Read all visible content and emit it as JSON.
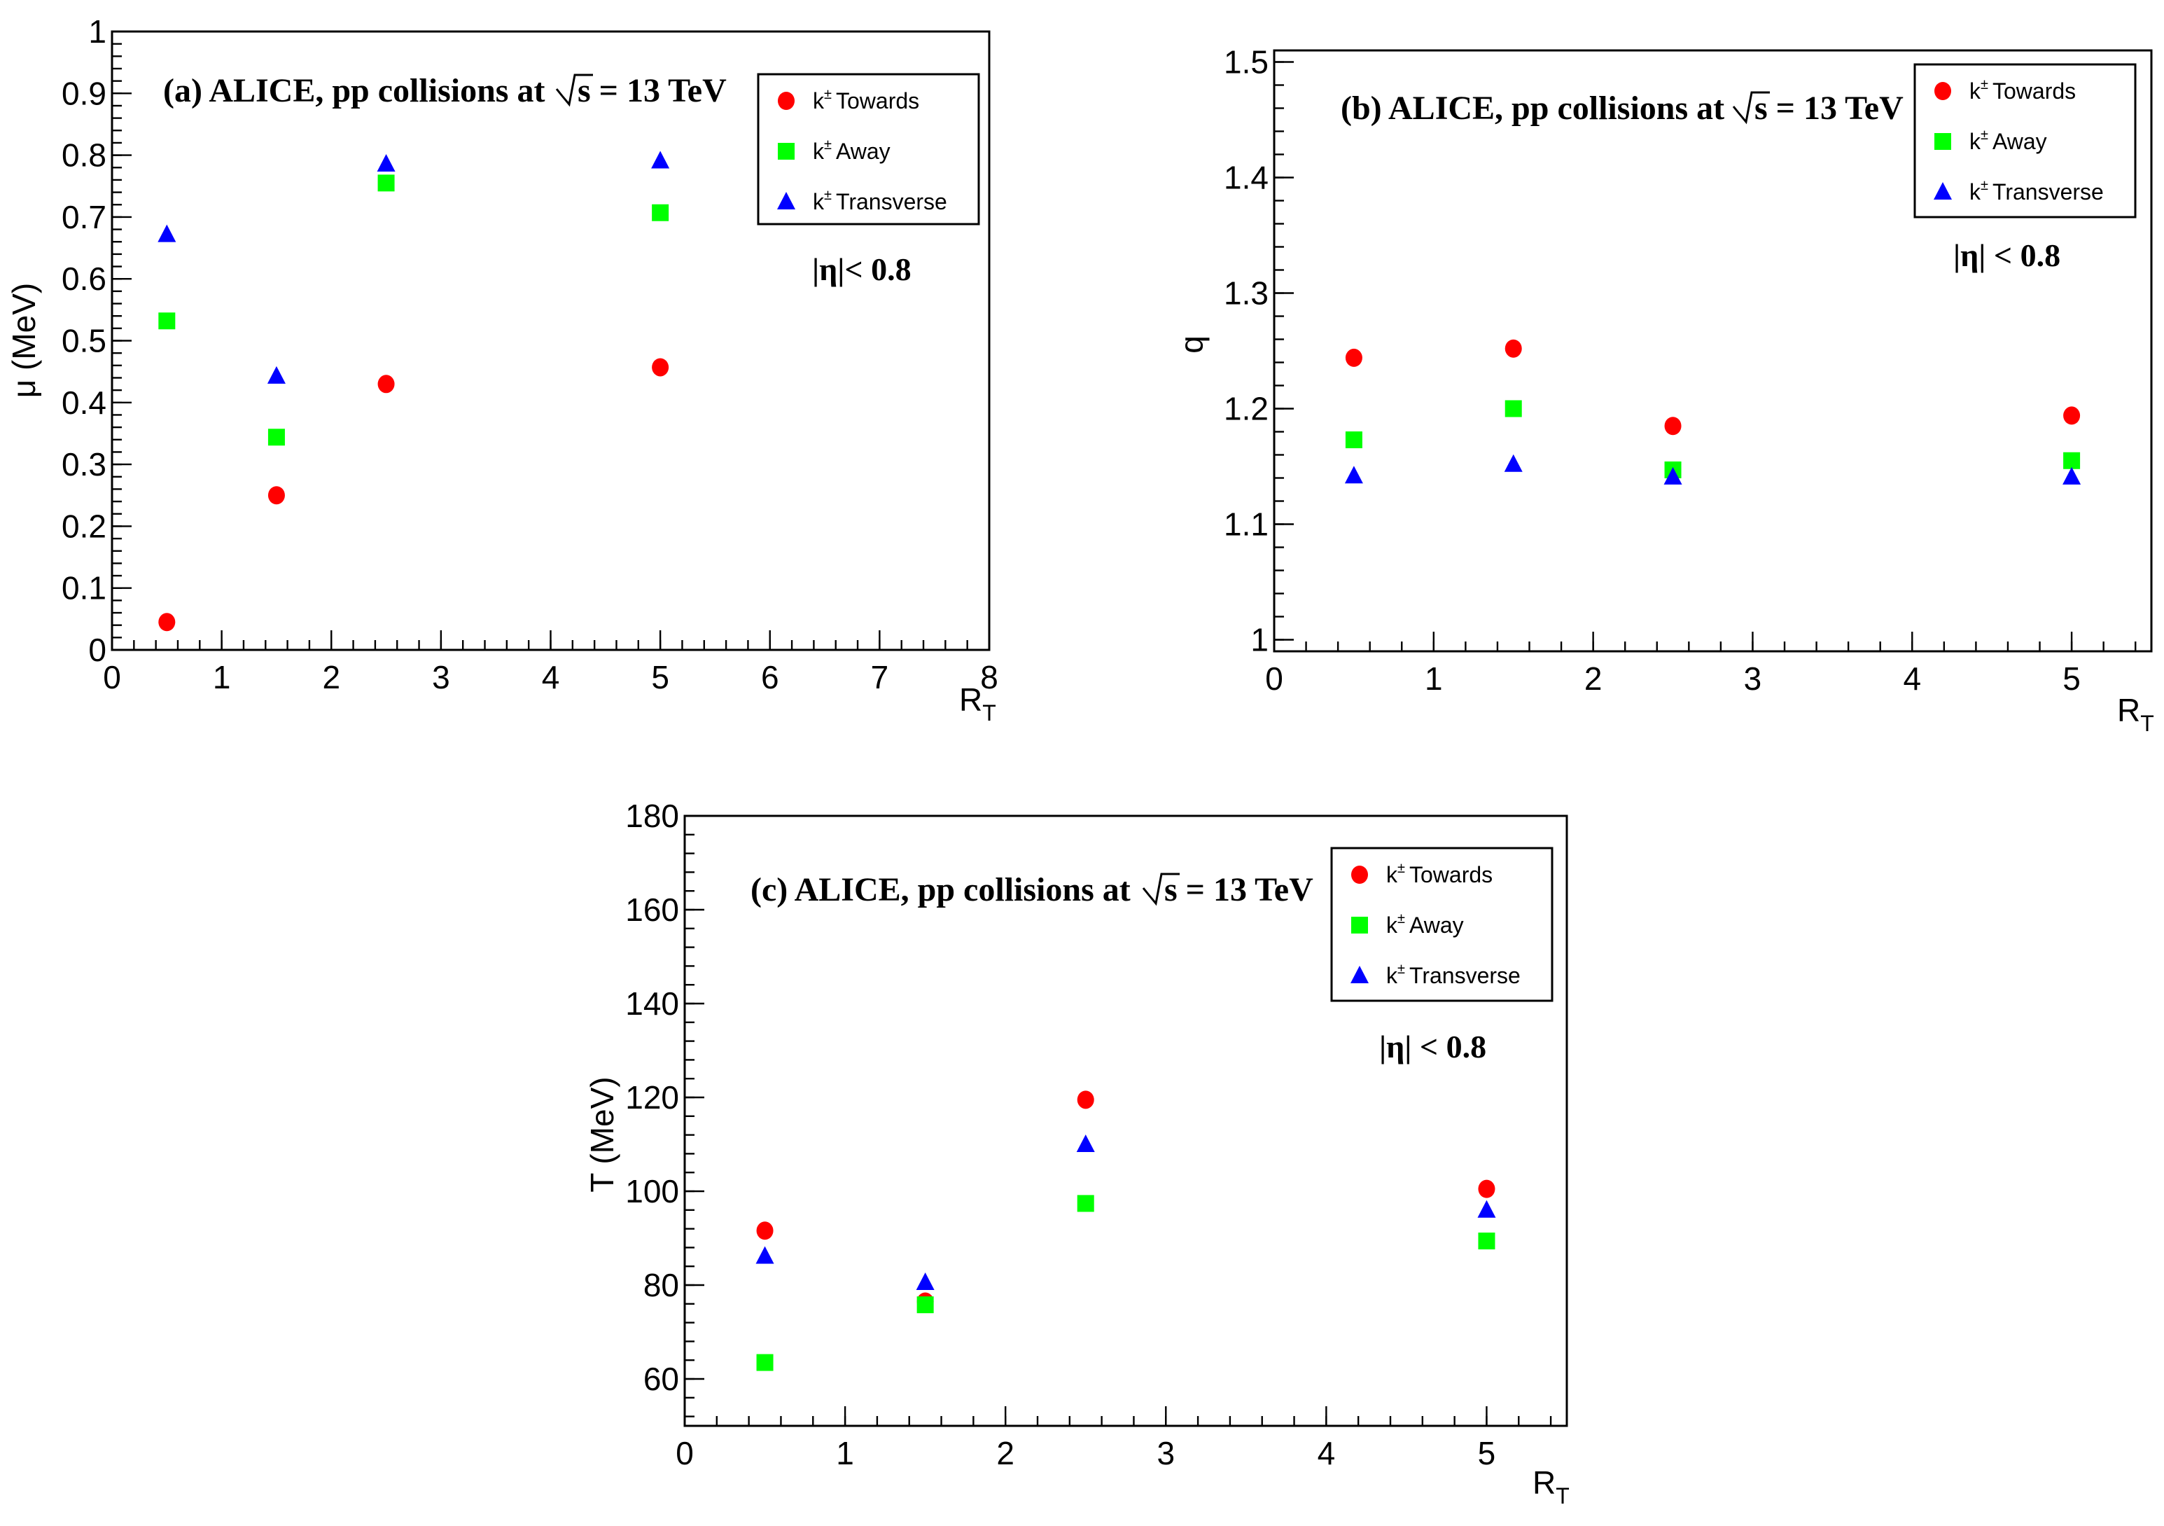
{
  "chart_data": [
    {
      "id": "a",
      "type": "scatter",
      "title": "(a) ALICE, pp collisions at",
      "title_energy": "s = 13 TeV",
      "annotation": "|η|< 0.8",
      "xlabel": "R",
      "xlabel_sub": "T",
      "ylabel": "μ (MeV)",
      "xlim": [
        0,
        8
      ],
      "ylim": [
        0,
        1
      ],
      "xticks": [
        0,
        1,
        2,
        3,
        4,
        5,
        6,
        7,
        8
      ],
      "yticks": [
        0,
        0.1,
        0.2,
        0.3,
        0.4,
        0.5,
        0.6,
        0.7,
        0.8,
        0.9,
        1
      ],
      "xtick_labels": [
        "0",
        "1",
        "2",
        "3",
        "4",
        "5",
        "6",
        "7",
        "8"
      ],
      "ytick_labels": [
        "0",
        "0.1",
        "0.2",
        "0.3",
        "0.4",
        "0.5",
        "0.6",
        "0.7",
        "0.8",
        "0.9",
        "1"
      ],
      "legend_position": "top-right",
      "grid": false,
      "x": [
        0.5,
        1.5,
        2.5,
        5
      ],
      "series": [
        {
          "name": "k± Towards",
          "values": [
            0.045,
            0.25,
            0.43,
            0.457
          ]
        },
        {
          "name": "k± Away",
          "values": [
            0.532,
            0.344,
            0.755,
            0.707
          ]
        },
        {
          "name": "k± Transverse",
          "values": [
            0.672,
            0.443,
            0.786,
            0.791
          ]
        }
      ]
    },
    {
      "id": "b",
      "type": "scatter",
      "title": "(b) ALICE, pp collisions at",
      "title_energy": "s = 13 TeV",
      "annotation": "|η| < 0.8",
      "xlabel": "R",
      "xlabel_sub": "T",
      "ylabel": "q",
      "xlim": [
        0,
        5.5
      ],
      "ylim": [
        0.99,
        1.51
      ],
      "xticks": [
        0,
        1,
        2,
        3,
        4,
        5
      ],
      "yticks": [
        1,
        1.1,
        1.2,
        1.3,
        1.4,
        1.5
      ],
      "xtick_labels": [
        "0",
        "1",
        "2",
        "3",
        "4",
        "5"
      ],
      "ytick_labels": [
        "1",
        "1.1",
        "1.2",
        "1.3",
        "1.4",
        "1.5"
      ],
      "legend_position": "top-right",
      "grid": false,
      "x": [
        0.5,
        1.5,
        2.5,
        5
      ],
      "series": [
        {
          "name": "k± Towards",
          "values": [
            1.244,
            1.252,
            1.185,
            1.194
          ]
        },
        {
          "name": "k± Away",
          "values": [
            1.173,
            1.2,
            1.147,
            1.155
          ]
        },
        {
          "name": "k± Transverse",
          "values": [
            1.142,
            1.152,
            1.141,
            1.141
          ]
        }
      ]
    },
    {
      "id": "c",
      "type": "scatter",
      "title": "(c) ALICE, pp collisions at",
      "title_energy": "s = 13 TeV",
      "annotation": "|η| < 0.8",
      "xlabel": "R",
      "xlabel_sub": "T",
      "ylabel": "T (MeV)",
      "xlim": [
        0,
        5.5
      ],
      "ylim": [
        50,
        180
      ],
      "xticks": [
        0,
        1,
        2,
        3,
        4,
        5
      ],
      "yticks": [
        60,
        80,
        100,
        120,
        140,
        160,
        180
      ],
      "xtick_labels": [
        "0",
        "1",
        "2",
        "3",
        "4",
        "5"
      ],
      "ytick_labels": [
        "60",
        "80",
        "100",
        "120",
        "140",
        "160",
        "180"
      ],
      "legend_position": "top-right",
      "grid": false,
      "x": [
        0.5,
        1.5,
        2.5,
        5
      ],
      "series": [
        {
          "name": "k± Towards",
          "values": [
            91.6,
            76.5,
            119.5,
            100.5
          ]
        },
        {
          "name": "k± Away",
          "values": [
            63.5,
            75.8,
            97.4,
            89.4
          ]
        },
        {
          "name": "k± Transverse",
          "values": [
            86.2,
            80.6,
            110,
            96
          ]
        }
      ]
    }
  ],
  "colors": {
    "towards": "#ff0000",
    "away": "#00ff00",
    "transverse": "#0000ff",
    "axis": "#000000"
  },
  "legend": {
    "towards_k": "k",
    "towards_sup": "±",
    "towards_label": "Towards",
    "away_k": "k",
    "away_sup": "±",
    "away_label": "Away",
    "transverse_k": "k",
    "transverse_sup": "±",
    "transverse_label": "Transverse"
  }
}
